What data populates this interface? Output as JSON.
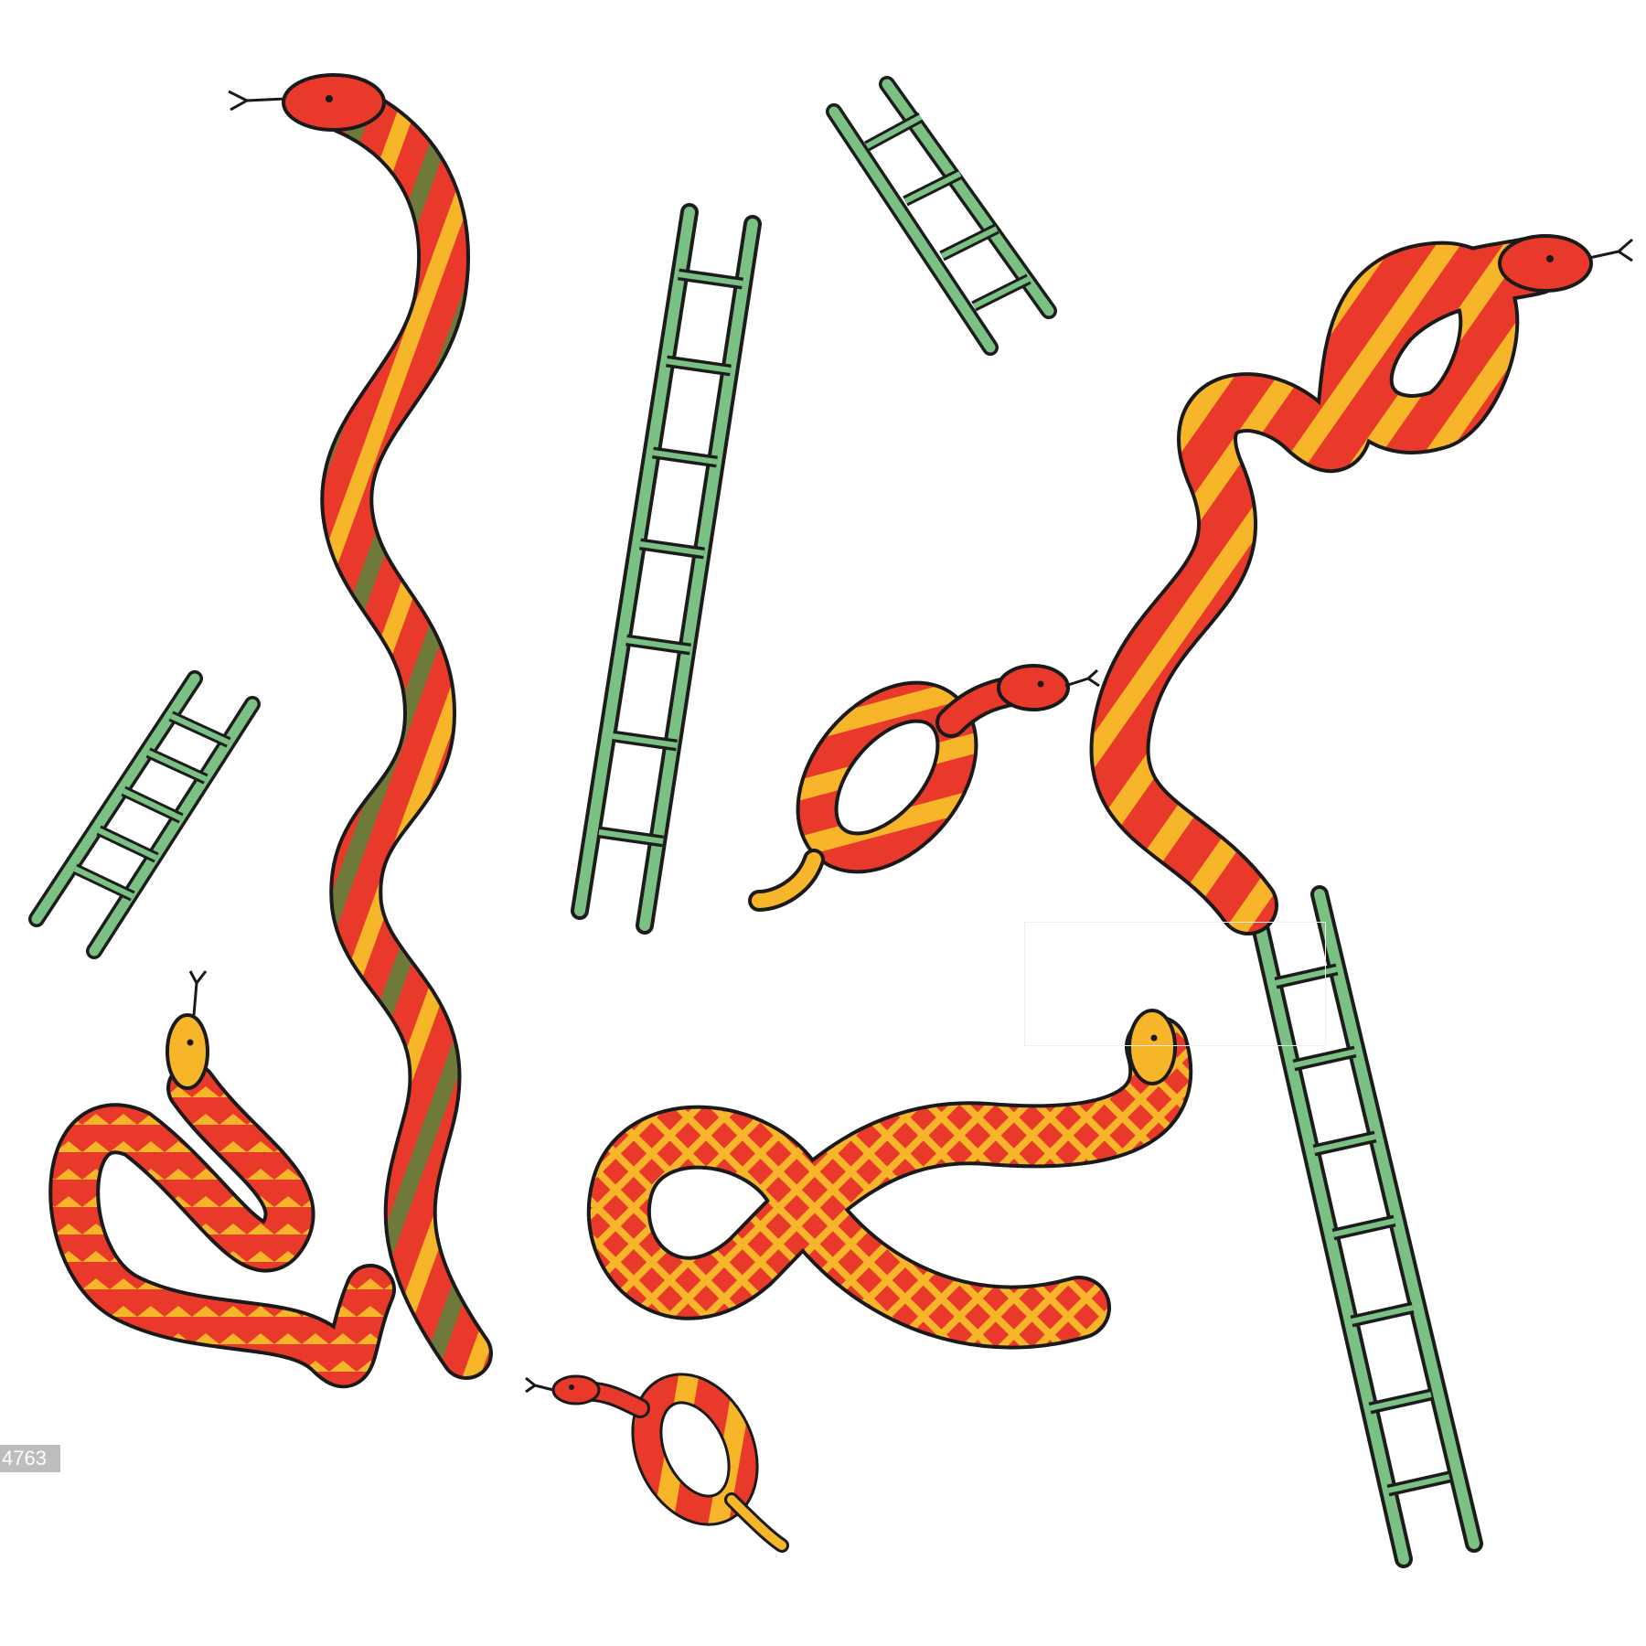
{
  "watermark": {
    "text": "4763"
  },
  "colors": {
    "background": "#ffffff",
    "ladder": "#7cc184",
    "ladder_outline": "#1c1c1c",
    "snake_red": "#e8392b",
    "snake_yellow": "#f7b52a",
    "snake_olive": "#6f7a3a",
    "outline": "#1a1a1a"
  },
  "icons": [
    "snake-icon",
    "ladder-icon"
  ]
}
